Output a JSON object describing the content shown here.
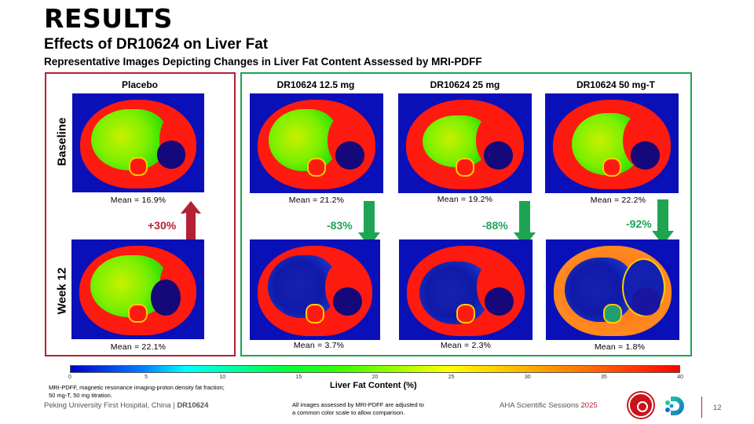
{
  "header": {
    "title": "RESULTS",
    "subtitle": "Effects of DR10624 on Liver Fat",
    "description": "Representative Images Depicting Changes in Liver Fat Content Assessed by MRI-PDFF"
  },
  "row_labels": {
    "baseline": "Baseline",
    "week12": "Week 12"
  },
  "groups": [
    {
      "name": "Placebo",
      "baseline_mean": "Mean = 16.9%",
      "week12_mean": "Mean = 22.1%",
      "change": "+30%",
      "direction": "up"
    },
    {
      "name": "DR10624 12.5 mg",
      "baseline_mean": "Mean = 21.2%",
      "week12_mean": "Mean = 3.7%",
      "change": "-83%",
      "direction": "down"
    },
    {
      "name": "DR10624 25 mg",
      "baseline_mean": "Mean = 19.2%",
      "week12_mean": "Mean = 2.3%",
      "change": "-88%",
      "direction": "down"
    },
    {
      "name": "DR10624 50 mg-T",
      "baseline_mean": "Mean = 22.2%",
      "week12_mean": "Mean = 1.8%",
      "change": "-92%",
      "direction": "down"
    }
  ],
  "colors": {
    "placebo_accent": "#b22234",
    "drug_accent": "#1fa453"
  },
  "colorbar": {
    "label": "Liver Fat Content (%)",
    "ticks": [
      "0",
      "5",
      "10",
      "15",
      "20",
      "25",
      "30",
      "35",
      "40"
    ],
    "range": [
      0,
      40
    ],
    "colors": [
      "#0000c8",
      "#00ffff",
      "#00ff40",
      "#ffff00",
      "#ff6000",
      "#ff0000"
    ]
  },
  "footer": {
    "footnote_line1": "MRI-PDFF, magnetic resonance imaging-proton density fat fraction;",
    "footnote_line2": "50 mg-T, 50 mg titration.",
    "source_prefix": "Peking University First Hospital, China | ",
    "source_bold": "DR10624",
    "note_line1": "All images assessed by MRI-PDFF are adjusted to",
    "note_line2": "a common color scale to allow comparison.",
    "conference": "AHA Scientific Sessions ",
    "conference_year": "2025",
    "page_number": "12"
  }
}
